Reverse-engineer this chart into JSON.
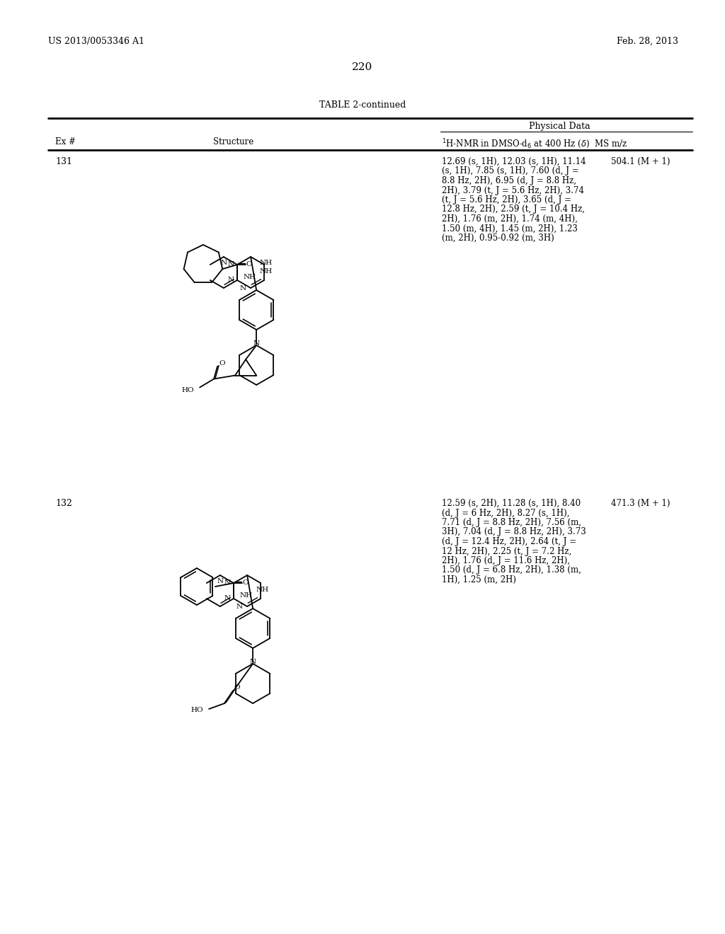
{
  "page_number": "220",
  "left_header": "US 2013/0053346 A1",
  "right_header": "Feb. 28, 2013",
  "table_title": "TABLE 2-continued",
  "physical_data_header": "Physical Data",
  "col_ex": "Ex #",
  "col_struct": "Structure",
  "col_nmr_ms": "$^1$H-NMR in DMSO-d$_6$ at 400 Hz ($\\delta$)  MS m/z",
  "rows": [
    {
      "ex": "131",
      "nmr": "12.69 (s, 1H), 12.03 (s, 1H), 11.14\n(s, 1H), 7.85 (s, 1H), 7.60 (d, J =\n8.8 Hz, 2H), 6.95 (d, J = 8.8 Hz,\n2H), 3.79 (t, J = 5.6 Hz, 2H), 3.74\n(t, J = 5.6 Hz, 2H), 3.65 (d, J =\n12.8 Hz, 2H), 2.59 (t, J = 10.4 Hz,\n2H), 1.76 (m, 2H), 1.74 (m, 4H),\n1.50 (m, 4H), 1.45 (m, 2H), 1.23\n(m, 2H), 0.95-0.92 (m, 3H)",
      "ms": "504.1 (M + 1)"
    },
    {
      "ex": "132",
      "nmr": "12.59 (s, 2H), 11.28 (s, 1H), 8.40\n(d, J = 6 Hz, 2H), 8.27 (s, 1H),\n7.71 (d, J = 8.8 Hz, 2H), 7.56 (m,\n3H), 7.04 (d, J = 8.8 Hz, 2H), 3.73\n(d, J = 12.4 Hz, 2H), 2.64 (t, J =\n12 Hz, 2H), 2.25 (t, J = 7.2 Hz,\n2H), 1.76 (d, J = 11.6 Hz, 2H),\n1.50 (d, J = 6.8 Hz, 2H), 1.38 (m,\n1H), 1.25 (m, 2H)",
      "ms": "471.3 (M + 1)"
    }
  ],
  "background_color": "#ffffff",
  "text_color": "#000000"
}
